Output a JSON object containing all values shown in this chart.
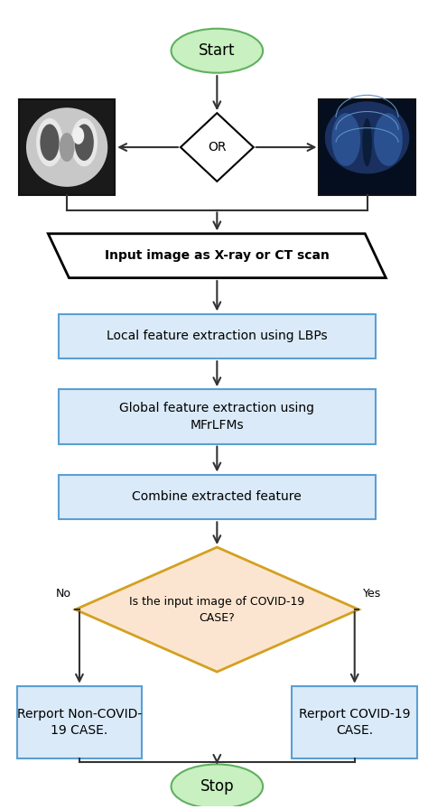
{
  "fig_width": 4.74,
  "fig_height": 8.96,
  "dpi": 100,
  "bg_color": "#ffffff",
  "start_stop_fc": "#c8f0c0",
  "start_stop_ec": "#60b060",
  "blue_box_fc": "#daeaf8",
  "blue_box_ec": "#5a9fd4",
  "para_fc": "#ffffff",
  "para_ec": "#000000",
  "decision_fc": "#fce5d0",
  "decision_ec": "#d4a020",
  "or_fc": "#ffffff",
  "or_ec": "#000000",
  "arrow_color": "#333333",
  "text_color": "#000000",
  "start_label": "Start",
  "or_label": "OR",
  "input_label": "Input image as X-ray or CT scan",
  "lbp_label": "Local feature extraction using LBPs",
  "mfr_label": "Global feature extraction using\nMFrLFMs",
  "combine_label": "Combine extracted feature",
  "decision_label": "Is the input image of COVID-19\nCASE?",
  "no_label": "Rerport Non-COVID-\n19 CASE.",
  "yes_label": "Rerport COVID-19\nCASE.",
  "stop_label": "Stop",
  "no_text": "No",
  "yes_text": "Yes",
  "ct_fc": "#b0b0b0",
  "xray_fc": "#001840",
  "ct_highlight": "#e0e0e0",
  "xray_highlight": "#4080c0"
}
